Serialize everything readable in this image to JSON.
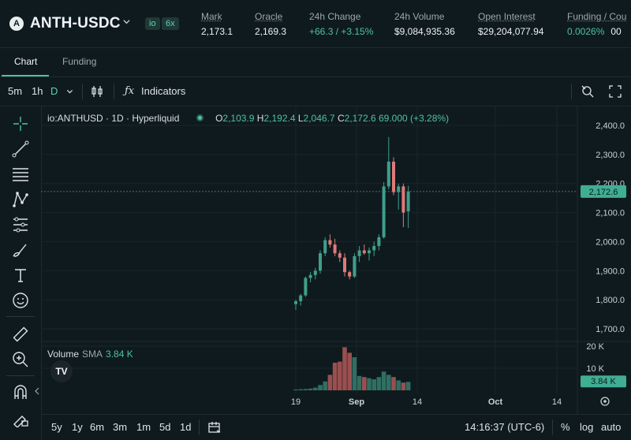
{
  "header": {
    "logo_text": "A",
    "pair": "ANTH-USDC",
    "badges": [
      "io",
      "6x"
    ],
    "stats": [
      {
        "label": "Mark",
        "value": "2,173.1"
      },
      {
        "label": "Oracle",
        "value": "2,169.3"
      },
      {
        "label": "24h Change",
        "value": "+66.3 / +3.15%",
        "positive": true
      },
      {
        "label": "24h Volume",
        "value": "$9,084,935.36"
      },
      {
        "label": "Open Interest",
        "value": "$29,204,077.94"
      },
      {
        "label": "Funding / Cou",
        "value": "0.0026%",
        "extra": "00"
      }
    ]
  },
  "tabs": [
    "Chart",
    "Funding"
  ],
  "toolbar": {
    "intervals": [
      "5m",
      "1h",
      "D"
    ],
    "selected_interval": "D",
    "indicators_label": "Indicators"
  },
  "legend": {
    "symbol": "io:ANTHUSD · 1D · Hyperliquid",
    "o_label": "O",
    "o": "2,103.9",
    "h_label": "H",
    "h": "2,192.4",
    "l_label": "L",
    "l": "2,046.7",
    "c_label": "C",
    "c": "2,172.6",
    "change": "69.000 (+3.28%)"
  },
  "volume_legend": {
    "label": "Volume",
    "sma": "SMA",
    "value": "3.84 K"
  },
  "price_axis": {
    "ticks": [
      "2,400.0",
      "2,300.0",
      "2,200.0",
      "2,100.0",
      "2,000.0",
      "1,900.0",
      "1,800.0",
      "1,700.0"
    ],
    "current": "2,172.6"
  },
  "volume_axis": {
    "ticks": [
      "20 K",
      "10 K"
    ],
    "current": "3.84 K"
  },
  "time_axis": [
    "19",
    "Sep",
    "14",
    "Oct",
    "14"
  ],
  "bottom": {
    "ranges": [
      "5y",
      "1y",
      "6m",
      "3m",
      "1m",
      "5d",
      "1d"
    ],
    "clock": "14:16:37 (UTC-6)",
    "pct": "%",
    "log": "log",
    "auto": "auto"
  },
  "colors": {
    "up": "#3f9f8a",
    "down": "#e07a78",
    "accent": "#4fc2a2",
    "bg": "#0f1a1f"
  },
  "chart_data": {
    "type": "candlestick",
    "ylim": [
      1650,
      2450
    ],
    "candles": [
      {
        "o": 1785,
        "h": 1800,
        "l": 1765,
        "c": 1795
      },
      {
        "o": 1795,
        "h": 1820,
        "l": 1780,
        "c": 1815
      },
      {
        "o": 1815,
        "h": 1880,
        "l": 1810,
        "c": 1875
      },
      {
        "o": 1875,
        "h": 1895,
        "l": 1860,
        "c": 1885
      },
      {
        "o": 1885,
        "h": 1910,
        "l": 1870,
        "c": 1900
      },
      {
        "o": 1900,
        "h": 1970,
        "l": 1890,
        "c": 1960
      },
      {
        "o": 1960,
        "h": 2015,
        "l": 1950,
        "c": 2005
      },
      {
        "o": 2005,
        "h": 2025,
        "l": 1980,
        "c": 1990
      },
      {
        "o": 1990,
        "h": 2010,
        "l": 1950,
        "c": 1960
      },
      {
        "o": 1960,
        "h": 1970,
        "l": 1930,
        "c": 1945
      },
      {
        "o": 1945,
        "h": 1960,
        "l": 1880,
        "c": 1895
      },
      {
        "o": 1895,
        "h": 1900,
        "l": 1870,
        "c": 1880
      },
      {
        "o": 1880,
        "h": 1960,
        "l": 1875,
        "c": 1950
      },
      {
        "o": 1950,
        "h": 1985,
        "l": 1930,
        "c": 1970
      },
      {
        "o": 1970,
        "h": 1990,
        "l": 1955,
        "c": 1960
      },
      {
        "o": 1960,
        "h": 1980,
        "l": 1935,
        "c": 1970
      },
      {
        "o": 1970,
        "h": 2000,
        "l": 1950,
        "c": 1985
      },
      {
        "o": 1985,
        "h": 2025,
        "l": 1970,
        "c": 2015
      },
      {
        "o": 2015,
        "h": 2205,
        "l": 2010,
        "c": 2190
      },
      {
        "o": 2190,
        "h": 2360,
        "l": 2180,
        "c": 2275
      },
      {
        "o": 2275,
        "h": 2290,
        "l": 2160,
        "c": 2170
      },
      {
        "o": 2170,
        "h": 2200,
        "l": 2110,
        "c": 2190
      },
      {
        "o": 2190,
        "h": 2200,
        "l": 2050,
        "c": 2100
      },
      {
        "o": 2104,
        "h": 2192,
        "l": 2047,
        "c": 2173
      }
    ],
    "volumes": [
      0.4,
      0.5,
      0.6,
      0.8,
      1.2,
      2.4,
      4.0,
      7.0,
      12.5,
      13.0,
      19.5,
      17.0,
      15.0,
      6.5,
      6.0,
      5.5,
      5.0,
      6.0,
      8.5,
      7.0,
      6.0,
      4.5,
      3.5,
      3.84
    ],
    "volume_ylim": [
      0,
      24
    ]
  }
}
